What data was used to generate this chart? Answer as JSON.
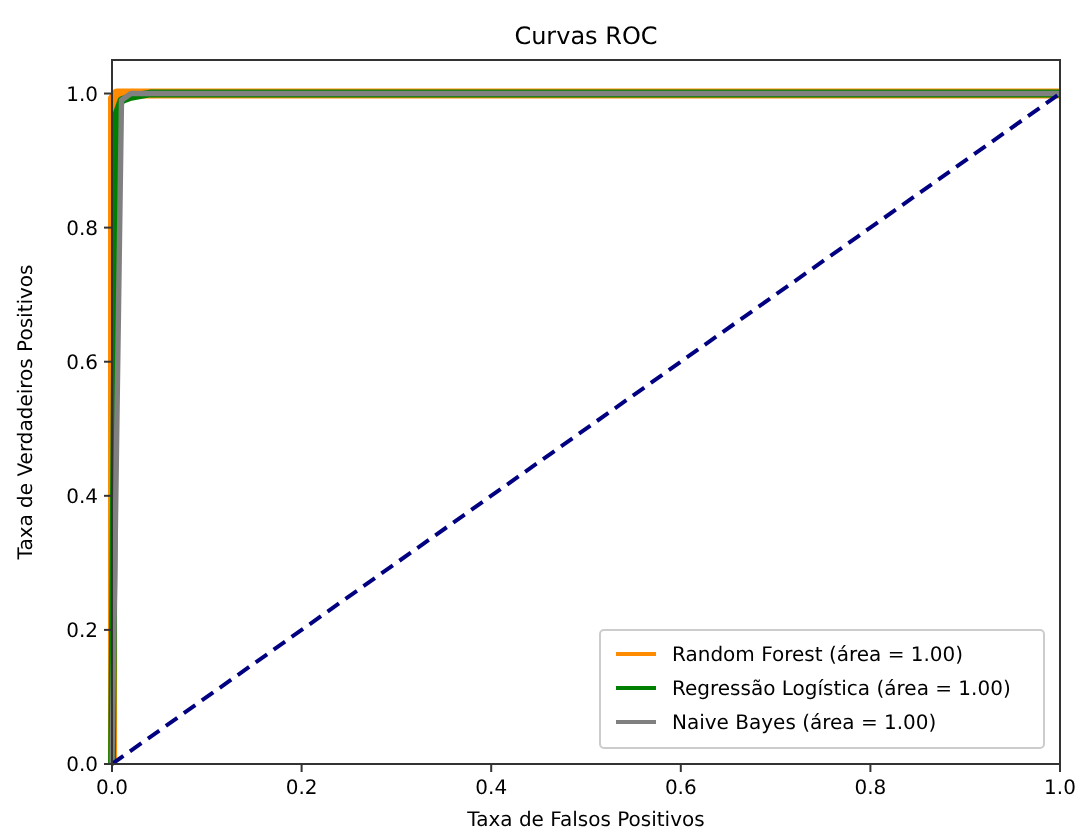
{
  "chart_data": {
    "type": "line",
    "title": "Curvas ROC",
    "xlabel": "Taxa de Falsos Positivos",
    "ylabel": "Taxa de Verdadeiros Positivos",
    "xlim": [
      0,
      1
    ],
    "ylim": [
      0,
      1.05
    ],
    "xticks": [
      {
        "value": 0,
        "label": "0.0"
      },
      0.2,
      0.4,
      0.6,
      0.8,
      {
        "value": 1,
        "label": "1.0"
      }
    ],
    "yticks": [
      {
        "value": 0,
        "label": "0.0"
      },
      0.2,
      0.4,
      0.6,
      0.8,
      {
        "value": 1,
        "label": "1.0"
      }
    ],
    "legend": "bottom right",
    "grid": false,
    "series": [
      {
        "name": "Random Forest (área = 1.00)",
        "color": "#ff8c00",
        "x": [
          0,
          0,
          0.005,
          1
        ],
        "values": [
          0,
          0.99,
          1,
          1
        ]
      },
      {
        "name": "Regressão Logística (área = 1.00)",
        "color": "#008000",
        "x": [
          0,
          0.005,
          0.01,
          0.02,
          0.04,
          1
        ],
        "values": [
          0,
          0.97,
          0.99,
          0.995,
          1,
          1
        ]
      },
      {
        "name": "Naive Bayes (área = 1.00)",
        "color": "#808080",
        "x": [
          0,
          0.01,
          0.02,
          1
        ],
        "values": [
          0,
          0.99,
          1,
          1
        ]
      },
      {
        "color": "#000080",
        "line_style": "dashed",
        "x": [
          0,
          1
        ],
        "values": [
          0,
          1
        ]
      }
    ]
  }
}
